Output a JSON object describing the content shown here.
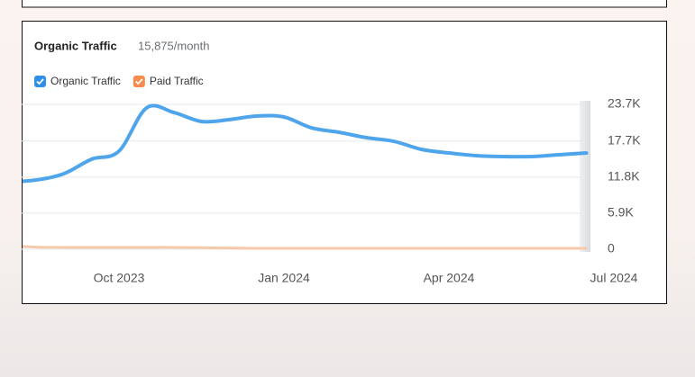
{
  "chart_data": {
    "type": "line",
    "title": "Organic Traffic",
    "subtitle": "15,875/month",
    "categories": [
      null,
      null,
      null,
      null,
      "Oct 2023",
      null,
      null,
      null,
      null,
      null,
      "Jan 2024",
      null,
      null,
      null,
      null,
      null,
      "Apr 2024",
      null,
      null,
      null,
      null,
      null,
      "Jul 2024"
    ],
    "series": [
      {
        "name": "Organic Traffic",
        "color": "#4ea5ec",
        "values": [
          11000,
          11330,
          12370,
          14720,
          16050,
          23110,
          22370,
          20900,
          21200,
          21790,
          21640,
          19870,
          19140,
          18250,
          17660,
          16340,
          15750,
          15310,
          15160,
          15160,
          15460,
          15750,
          null
        ]
      },
      {
        "name": "Paid Traffic",
        "color": "#f7c9ab",
        "values": [
          600,
          350,
          300,
          300,
          300,
          300,
          300,
          250,
          200,
          150,
          150,
          150,
          150,
          150,
          150,
          150,
          150,
          150,
          150,
          150,
          150,
          150,
          null
        ]
      }
    ],
    "legend_colors": [
      "#2f8fe6",
      "#f58b4c"
    ],
    "ylim": [
      0,
      23700
    ],
    "yticks": [
      0,
      {
        "value": 5900,
        "label": "5.9K"
      },
      {
        "value": 11800,
        "label": "11.8K"
      },
      {
        "value": 17700,
        "label": "17.7K"
      },
      {
        "value": 23700,
        "label": "23.7K"
      }
    ],
    "grid": true
  }
}
